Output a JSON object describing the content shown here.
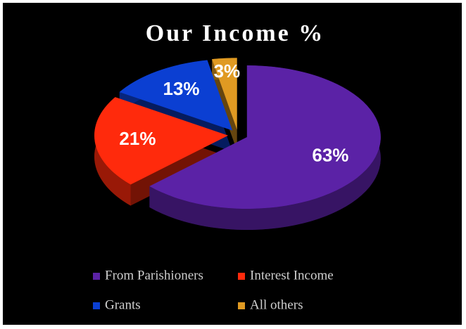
{
  "chart_data": {
    "type": "pie",
    "title": "Our Income %",
    "categories": [
      "From Parishioners",
      "Interest Income",
      "Grants",
      "All others"
    ],
    "values": [
      63,
      21,
      13,
      3
    ],
    "value_labels": [
      "63%",
      "21%",
      "13%",
      "3%"
    ],
    "colors": [
      "#5b22a6",
      "#ff2a0c",
      "#0b3fd2",
      "#e09a22"
    ],
    "legend": "bottom"
  }
}
